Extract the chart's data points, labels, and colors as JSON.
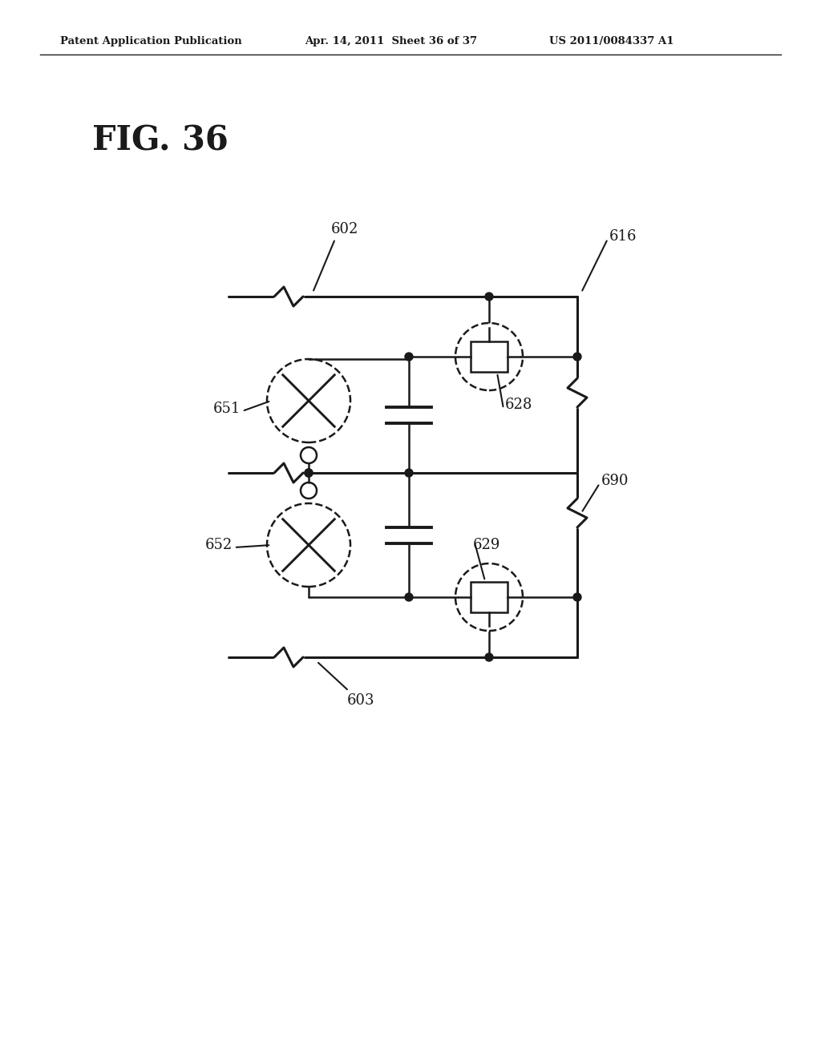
{
  "title": "FIG. 36",
  "header_left": "Patent Application Publication",
  "header_center": "Apr. 14, 2011  Sheet 36 of 37",
  "header_right": "US 2011/0084337 A1",
  "background": "#ffffff",
  "line_color": "#1a1a1a",
  "lw": 2.2,
  "lw_thin": 1.8,
  "fig_width": 10.24,
  "fig_height": 13.2
}
